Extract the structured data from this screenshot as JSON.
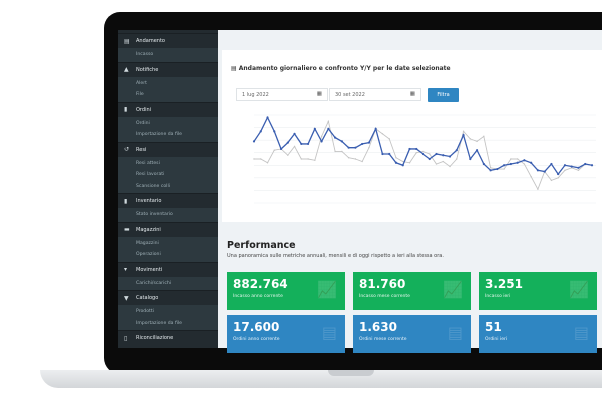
{
  "sidebar": [
    {
      "label": "Andamento",
      "icon": "chart-icon",
      "glyph": "▤",
      "items": [
        "Incasso"
      ]
    },
    {
      "label": "Notifiche",
      "icon": "bell-icon",
      "glyph": "▲",
      "items": [
        "Alert",
        "File"
      ]
    },
    {
      "label": "Ordini",
      "icon": "document-icon",
      "glyph": "▮",
      "items": [
        "Ordini",
        "Importazione da file"
      ]
    },
    {
      "label": "Resi",
      "icon": "undo-icon",
      "glyph": "↺",
      "items": [
        "Resi attesi",
        "Resi lavorati",
        "Scansione colli"
      ]
    },
    {
      "label": "Inventario",
      "icon": "clipboard-icon",
      "glyph": "▮",
      "items": [
        "Stato inventario"
      ]
    },
    {
      "label": "Magazzini",
      "icon": "warehouse-icon",
      "glyph": "▬",
      "items": [
        "Magazzini",
        "Operazioni"
      ]
    },
    {
      "label": "Movimenti",
      "icon": "dolly-icon",
      "glyph": "▾",
      "items": [
        "Carichi/scarichi"
      ]
    },
    {
      "label": "Catalogo",
      "icon": "tshirt-icon",
      "glyph": "▼",
      "items": [
        "Prodotti",
        "Importazione da file"
      ]
    },
    {
      "label": "Riconciliazione",
      "icon": "file-icon",
      "glyph": "▯",
      "items": []
    }
  ],
  "chart_card": {
    "title": "Andamento giornaliero e confronto Y/Y per le date selezionate",
    "date_from": "1 lug 2022",
    "date_to": "30 set 2022",
    "filter_label": "Filtra"
  },
  "chart_data": {
    "type": "line",
    "ylim": [
      0,
      7
    ],
    "grid": true,
    "colors": {
      "current": "#3a5eb0",
      "previous": "#c4c4c4"
    },
    "series": [
      {
        "values": [
          4.9,
          5.7,
          6.8,
          5.7,
          4.3,
          4.8,
          5.5,
          4.7,
          4.7,
          5.9,
          4.9,
          5.9,
          5.2,
          4.9,
          4.4,
          4.4,
          4.7,
          4.8,
          5.9,
          3.9,
          3.9,
          3.2,
          3.0,
          4.3,
          4.3,
          3.9,
          3.5,
          3.9,
          3.8,
          3.7,
          4.2,
          5.4,
          3.5,
          4.2,
          3.1,
          2.6,
          2.7,
          3.0,
          3.1,
          3.2,
          3.4,
          3.2,
          2.6,
          2.5,
          3.1,
          2.3,
          3.0,
          2.9,
          2.8,
          3.1,
          3.0
        ]
      },
      {
        "values": [
          3.5,
          3.5,
          3.2,
          4.2,
          4.3,
          3.8,
          4.5,
          3.5,
          3.5,
          3.4,
          5.3,
          6.5,
          4.1,
          4.1,
          3.6,
          3.5,
          3.3,
          4.4,
          5.9,
          5.5,
          5.1,
          3.6,
          3.3,
          3.2,
          4.0,
          4.1,
          3.9,
          3.1,
          3.3,
          2.9,
          3.5,
          5.7,
          5.1,
          4.9,
          5.3,
          2.8,
          2.7,
          2.7,
          3.5,
          3.5,
          3.1,
          2.1,
          1.1,
          2.5,
          1.8,
          2.0,
          2.6,
          2.8,
          2.6,
          3.1,
          3.0
        ]
      }
    ]
  },
  "performance": {
    "title": "Performance",
    "subtitle": "Una panoramica sulle metriche annuali, mensili e di oggi rispetto a ieri alla stessa ora.",
    "kpis": [
      {
        "value": "882.764",
        "label": "Incasso anno corrente",
        "color": "green",
        "icon": "chart-icon"
      },
      {
        "value": "81.760",
        "label": "Incasso mese corrente",
        "color": "green",
        "icon": "chart-icon"
      },
      {
        "value": "3.251",
        "label": "Incasso ieri",
        "color": "green",
        "icon": "chart-icon"
      },
      {
        "value": "17.600",
        "label": "Ordini anno corrente",
        "color": "blue",
        "icon": "document-icon"
      },
      {
        "value": "1.630",
        "label": "Ordini mese corrente",
        "color": "blue",
        "icon": "document-icon"
      },
      {
        "value": "51",
        "label": "Ordini ieri",
        "color": "blue",
        "icon": "document-icon"
      }
    ]
  }
}
